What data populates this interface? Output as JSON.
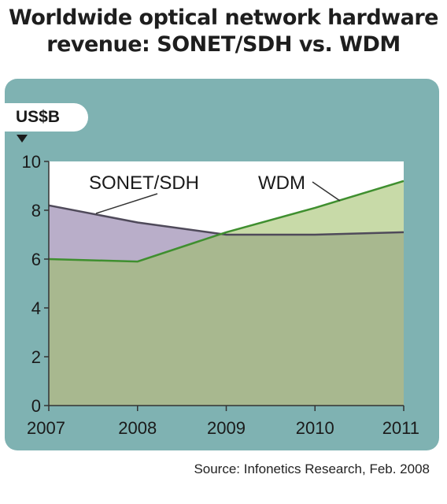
{
  "chart_data": {
    "type": "area",
    "title_lines": [
      "Worldwide optical network hardware",
      "revenue: SONET/SDH vs. WDM"
    ],
    "ylabel": "US$B",
    "x": [
      "2007",
      "2008",
      "2009",
      "2010",
      "2011"
    ],
    "ylim": [
      0,
      10
    ],
    "yticks": [
      0,
      2,
      4,
      6,
      8,
      10
    ],
    "series": [
      {
        "name": "SONET/SDH",
        "values": [
          8.2,
          7.5,
          7.0,
          7.0,
          7.1
        ]
      },
      {
        "name": "WDM",
        "values": [
          6.0,
          5.9,
          7.1,
          8.1,
          9.2
        ]
      }
    ],
    "grid": false,
    "source": "Source: Infonetics Research, Feb. 2008"
  },
  "colors": {
    "panel": "#7fb2b2",
    "plot_bg": "#ffffff",
    "common_area": "#a8b88f",
    "sonet_area": "#b9aec9",
    "wdm_area": "#c8daa8",
    "sonet_line": "#4f4a5a",
    "wdm_line": "#3f8f2f"
  }
}
